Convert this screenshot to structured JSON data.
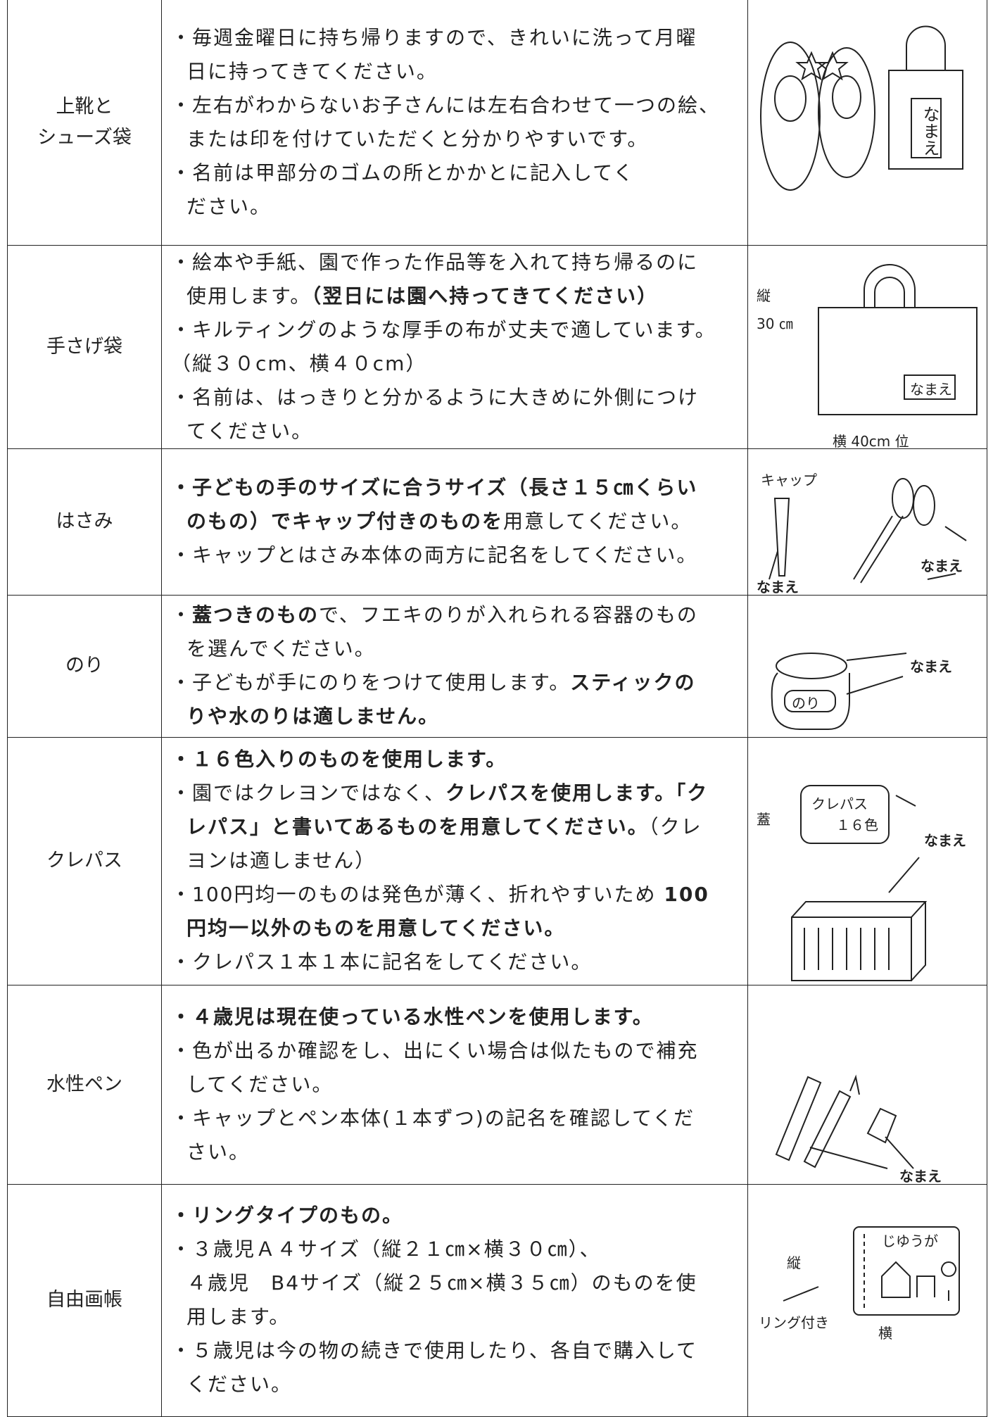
{
  "table": {
    "rows": [
      {
        "item": [
          "上靴と",
          "シューズ袋"
        ],
        "lines": [
          [
            "・毎週金曜日に持ち帰りますので、きれいに洗って月曜"
          ],
          [
            "日に持ってきてください。"
          ],
          [
            "・左右がわからないお子さんには左右合わせて一つの絵、"
          ],
          [
            "または印を付けていただくと分かりやすいです。"
          ],
          [
            "・名前は甲部分のゴムの所とかかとに記入してく"
          ],
          [
            "ださい。"
          ]
        ],
        "labels": [
          "なまえ"
        ]
      },
      {
        "item": [
          "手さげ袋"
        ],
        "lines": [
          [
            "・絵本や手紙、園で作った作品等を入れて持ち帰るのに"
          ],
          [
            "使用します。",
            {
              "text": "（翌日には園へ持ってきてください）",
              "bold": true
            }
          ],
          [
            "・キルティングのような厚手の布が丈夫で適しています。"
          ],
          [
            "（縦３０cm、横４０cm）"
          ],
          [
            "・名前は、はっきりと分かるように大きめに外側につけ"
          ],
          [
            "てください。"
          ]
        ],
        "labels": [
          "縦",
          "30 ㎝",
          "なまえ",
          "横 40cm 位"
        ]
      },
      {
        "item": [
          "はさみ"
        ],
        "lines": [
          [
            {
              "text": "・子どもの手のサイズに合うサイズ（長さ１５㎝くらい",
              "bold": true
            }
          ],
          [
            {
              "text": "のもの）でキャップ付きのものを",
              "bold": true
            },
            "用意してください。"
          ],
          [
            "・キャップとはさみ本体の両方に記名をしてください。"
          ]
        ],
        "labels": [
          "キャップ",
          "なまえ",
          "なまえ"
        ]
      },
      {
        "item": [
          "のり"
        ],
        "lines": [
          [
            "・",
            {
              "text": "蓋つきのもの",
              "bold": true
            },
            "で、フエキのりが入れられる容器のもの"
          ],
          [
            "を選んでください。"
          ],
          [
            "・子どもが手にのりをつけて使用します。",
            {
              "text": "スティックの",
              "bold": true
            }
          ],
          [
            {
              "text": "りや水のりは適しません。",
              "bold": true
            }
          ]
        ],
        "labels": [
          "なまえ",
          "のり"
        ]
      },
      {
        "item": [
          "クレパス"
        ],
        "lines": [
          [
            {
              "text": "・１６色入りのものを使用します。",
              "bold": true
            }
          ],
          [
            "・園ではクレヨンではなく、",
            {
              "text": "クレパスを使用します。「ク",
              "bold": true
            }
          ],
          [
            {
              "text": "レパス」と書いてあるものを用意してください。",
              "bold": true
            },
            "（クレ"
          ],
          [
            "ヨンは適しません）"
          ],
          [
            "・100円均一のものは発色が薄く、折れやすいため ",
            {
              "text": "100",
              "bold": true
            }
          ],
          [
            {
              "text": "円均一以外のものを用意してください。",
              "bold": true
            }
          ],
          [
            "・クレパス１本１本に記名をしてください。"
          ]
        ],
        "labels": [
          "蓋",
          "クレパス",
          "１６色",
          "なまえ"
        ]
      },
      {
        "item": [
          "水性ペン"
        ],
        "lines": [
          [
            {
              "text": "・４歳児は現在使っている水性ペンを使用します。",
              "bold": true
            }
          ],
          [
            "・色が出るか確認をし、出にくい場合は似たもので補充"
          ],
          [
            "してください。"
          ],
          [
            "・キャップとペン本体(１本ずつ)の記名を確認してくだ"
          ],
          [
            "さい。"
          ]
        ],
        "labels": [
          "なまえ"
        ]
      },
      {
        "item": [
          "自由画帳"
        ],
        "lines": [
          [
            {
              "text": "・リングタイプのもの。",
              "bold": true
            }
          ],
          [
            "・３歳児Ａ４サイズ（縦２１㎝×横３０㎝）、"
          ],
          [
            "４歳児　B4サイズ（縦２５㎝×横３５㎝）のものを使"
          ],
          [
            "用します。"
          ],
          [
            "・５歳児は今の物の続きで使用したり、各自で購入して"
          ],
          [
            "ください。"
          ]
        ],
        "labels": [
          "縦",
          "リング付き",
          "横",
          "じゆうが"
        ]
      }
    ]
  }
}
